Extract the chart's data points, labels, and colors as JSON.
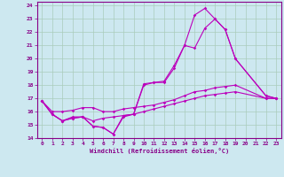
{
  "xlabel": "Windchill (Refroidissement éolien,°C)",
  "background_color": "#cde8f0",
  "line_color": "#bb00bb",
  "xlim": [
    -0.5,
    23.5
  ],
  "ylim": [
    14,
    24.3
  ],
  "yticks": [
    14,
    15,
    16,
    17,
    18,
    19,
    20,
    21,
    22,
    23,
    24
  ],
  "xticks": [
    0,
    1,
    2,
    3,
    4,
    5,
    6,
    7,
    8,
    9,
    10,
    11,
    12,
    13,
    14,
    15,
    16,
    17,
    18,
    19,
    20,
    21,
    22,
    23
  ],
  "series": [
    {
      "x": [
        0,
        1,
        2,
        3,
        4,
        5,
        6,
        7,
        8,
        9,
        10,
        11,
        12,
        13,
        14,
        15,
        16,
        17,
        18,
        19,
        22,
        23
      ],
      "y": [
        16.8,
        15.8,
        15.3,
        15.5,
        15.6,
        14.9,
        14.8,
        14.3,
        15.6,
        15.8,
        18.0,
        18.2,
        18.2,
        19.3,
        21.0,
        20.8,
        22.3,
        23.0,
        22.2,
        20.0,
        17.2,
        17.0
      ]
    },
    {
      "x": [
        0,
        1,
        2,
        3,
        4,
        5,
        6,
        7,
        8,
        9,
        10,
        11,
        12,
        13,
        14,
        15,
        16,
        17,
        18,
        19,
        22,
        23
      ],
      "y": [
        16.8,
        15.8,
        15.3,
        15.6,
        15.6,
        14.9,
        14.8,
        14.3,
        15.7,
        15.8,
        18.1,
        18.2,
        18.3,
        19.5,
        21.0,
        23.3,
        23.8,
        23.0,
        22.2,
        20.0,
        17.2,
        17.0
      ]
    },
    {
      "x": [
        0,
        1,
        2,
        3,
        4,
        5,
        6,
        7,
        8,
        9,
        10,
        11,
        12,
        13,
        14,
        15,
        16,
        17,
        18,
        19,
        22,
        23
      ],
      "y": [
        16.8,
        16.0,
        16.0,
        16.1,
        16.3,
        16.3,
        16.0,
        16.0,
        16.2,
        16.3,
        16.4,
        16.5,
        16.7,
        16.9,
        17.2,
        17.5,
        17.6,
        17.8,
        17.9,
        18.0,
        17.0,
        17.0
      ]
    },
    {
      "x": [
        0,
        1,
        2,
        3,
        4,
        5,
        6,
        7,
        8,
        9,
        10,
        11,
        12,
        13,
        14,
        15,
        16,
        17,
        18,
        19,
        22,
        23
      ],
      "y": [
        16.8,
        15.8,
        15.3,
        15.5,
        15.6,
        15.3,
        15.5,
        15.6,
        15.7,
        15.8,
        16.0,
        16.2,
        16.4,
        16.6,
        16.8,
        17.0,
        17.2,
        17.3,
        17.4,
        17.5,
        17.0,
        17.0
      ]
    }
  ]
}
